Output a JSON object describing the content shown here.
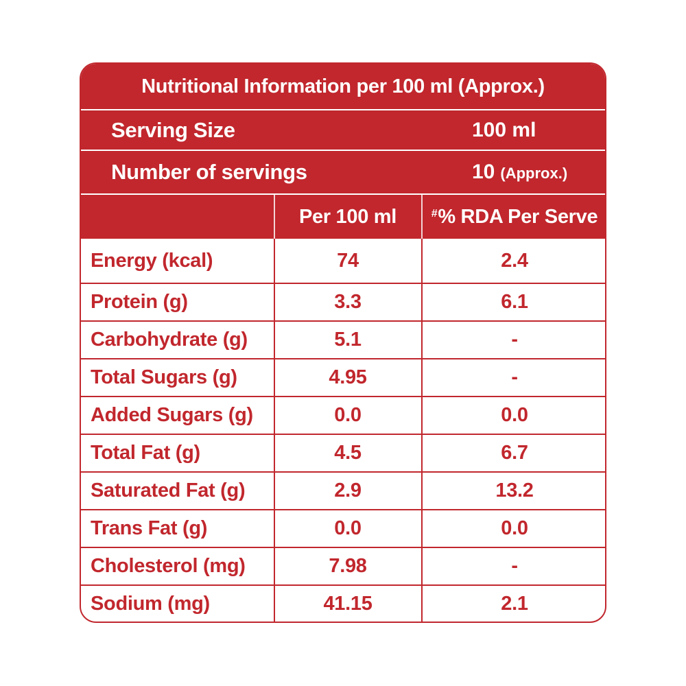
{
  "title": "Nutritional Information per 100 ml (Approx.)",
  "serving_size": {
    "label": "Serving Size",
    "value": "100 ml"
  },
  "servings": {
    "label": "Number of servings",
    "value": "10",
    "note": "(Approx.)"
  },
  "columns": {
    "per_100": "Per 100 ml",
    "rda_mark": "#",
    "rda": "% RDA Per Serve"
  },
  "rows": [
    {
      "name": "Energy (kcal)",
      "per_100": "74",
      "rda": "2.4"
    },
    {
      "name": "Protein (g)",
      "per_100": "3.3",
      "rda": "6.1"
    },
    {
      "name": "Carbohydrate (g)",
      "per_100": "5.1",
      "rda": "-"
    },
    {
      "name": "Total Sugars (g)",
      "per_100": "4.95",
      "rda": "-"
    },
    {
      "name": "Added Sugars (g)",
      "per_100": "0.0",
      "rda": "0.0"
    },
    {
      "name": "Total Fat (g)",
      "per_100": "4.5",
      "rda": "6.7"
    },
    {
      "name": "Saturated Fat (g)",
      "per_100": "2.9",
      "rda": "13.2"
    },
    {
      "name": "Trans Fat (g)",
      "per_100": "0.0",
      "rda": "0.0"
    },
    {
      "name": "Cholesterol (mg)",
      "per_100": "7.98",
      "rda": "-"
    },
    {
      "name": "Sodium (mg)",
      "per_100": "41.15",
      "rda": "2.1"
    }
  ],
  "colors": {
    "accent": "#c1272d",
    "background": "#ffffff"
  }
}
